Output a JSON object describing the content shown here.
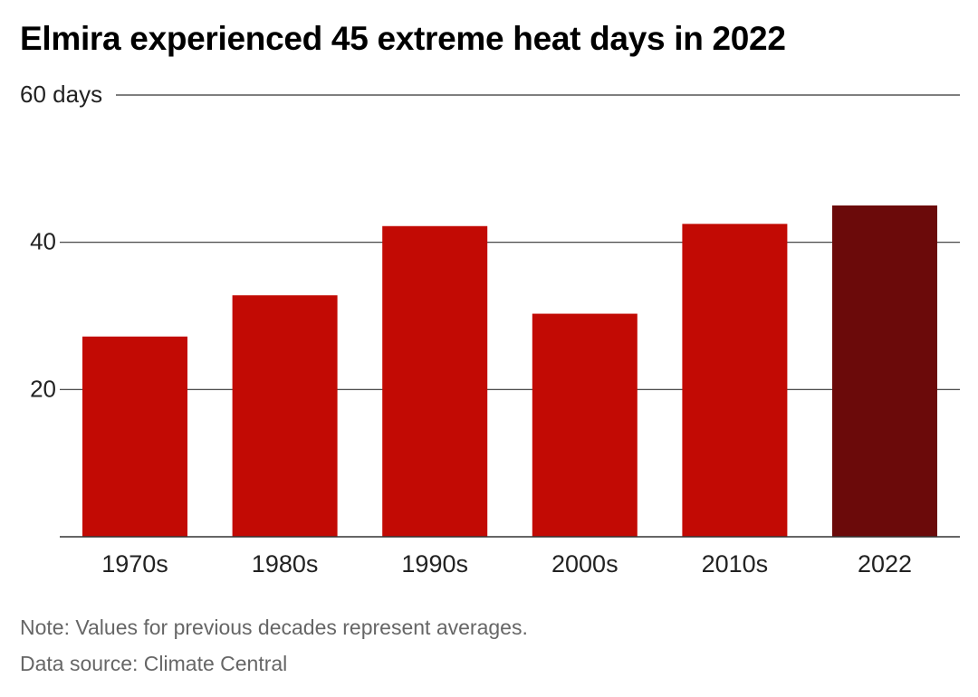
{
  "chart_data": {
    "type": "bar",
    "title": "Elmira experienced 45 extreme heat days in 2022",
    "categories": [
      "1970s",
      "1980s",
      "1990s",
      "2000s",
      "2010s",
      "2022"
    ],
    "values": [
      27.2,
      32.8,
      42.2,
      30.3,
      42.5,
      45
    ],
    "ylim": [
      0,
      60
    ],
    "yticks": [
      20,
      40,
      60
    ],
    "ytick_labels": [
      "20",
      "40",
      "60 days"
    ],
    "xlabel": "",
    "ylabel": "",
    "grid": true,
    "colors": {
      "bar": "#c20a04",
      "highlight": "#6b0a0a",
      "gridline": "#333333"
    },
    "highlight_category": "2022"
  },
  "footer": {
    "note": "Note: Values for previous decades represent averages.",
    "source": "Data source: Climate Central"
  }
}
